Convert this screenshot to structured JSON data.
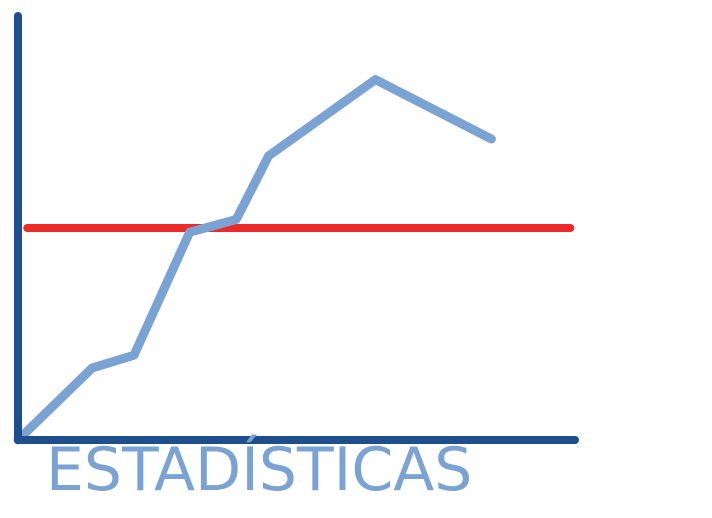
{
  "chart_data": {
    "type": "line",
    "title": "ESTADÍSTICAS",
    "xlabel": "",
    "ylabel": "",
    "xlim": [
      0,
      12
    ],
    "ylim": [
      0,
      100
    ],
    "grid": false,
    "series": [
      {
        "values": [
          {
            "x": 0,
            "y": 0
          },
          {
            "x": 1.6,
            "y": 17
          },
          {
            "x": 2.5,
            "y": 20
          },
          {
            "x": 3.7,
            "y": 49
          },
          {
            "x": 4.7,
            "y": 52
          },
          {
            "x": 5.4,
            "y": 67
          },
          {
            "x": 7.7,
            "y": 85
          },
          {
            "x": 10.2,
            "y": 71
          }
        ]
      }
    ],
    "reference_line": {
      "y": 50,
      "x_start": 0.2,
      "x_end": 11.9
    }
  },
  "colors": {
    "axis": "#1f4e8c",
    "series": "#7aa3d4",
    "reference": "#ec2a2a",
    "title": "#7aa3d4"
  }
}
